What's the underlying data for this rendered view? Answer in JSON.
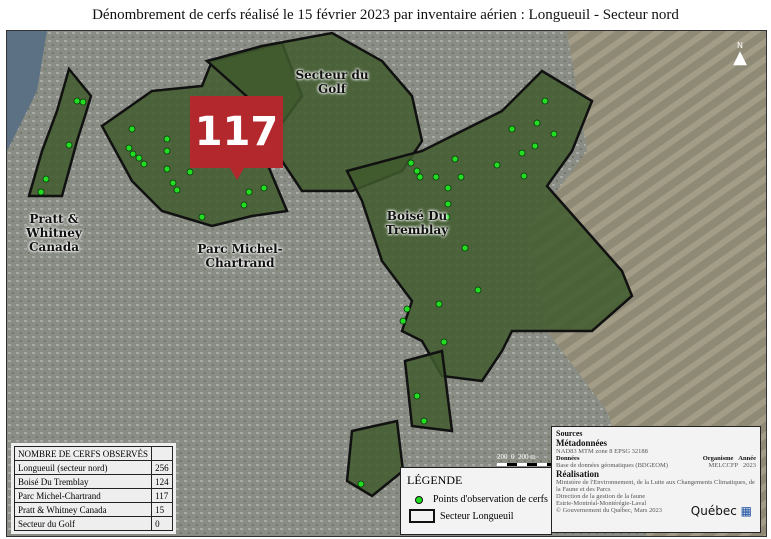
{
  "title": "Dénombrement de cerfs réalisé le 15 février 2023 par inventaire aérien : Longueuil - Secteur nord",
  "callout": "117",
  "map_labels": {
    "golf": "Secteur du Golf",
    "pratt": "Pratt & Whitney Canada",
    "parc": "Parc Michel-Chartrand",
    "boise": "Boisé Du Tremblay"
  },
  "north": "N",
  "scale": {
    "left": "200",
    "mid": "0",
    "right": "200 m"
  },
  "table": {
    "header": "NOMBRE DE CERFS OBSERVÉS",
    "rows": [
      {
        "name": "Longueuil (secteur nord)",
        "count": "256"
      },
      {
        "name": "Boisé Du Tremblay",
        "count": "124"
      },
      {
        "name": "Parc Michel-Chartrand",
        "count": "117"
      },
      {
        "name": "Pratt & Whitney Canada",
        "count": "15"
      },
      {
        "name": "Secteur du Golf",
        "count": "0"
      }
    ]
  },
  "legend": {
    "title": "LÉGENDE",
    "points": "Points d'observation de cerfs",
    "sector": "Secteur Longueuil"
  },
  "sources": {
    "heading": "Sources",
    "meta_h": "Métadonnées",
    "meta": "NAD83 MTM zone 8 EPSG 32188",
    "data_h": "Données",
    "org_h": "Organisme",
    "year_h": "Année",
    "data": "Base de données géomatiques (BDGEOM)",
    "org": "MELCCFP",
    "year": "2023",
    "real_h": "Réalisation",
    "real1": "Ministère de l'Environnement, de la Lutte aux Changements Climatiques, de la Faune et des Parcs",
    "real2": "Direction de la gestion de la faune",
    "real3": "Estrie-Montréal-Montérégie-Laval",
    "real4": "© Gouvernement du Québec, Mars 2023",
    "logo": "Québec"
  },
  "colors": {
    "point": "#22dd22",
    "callout": "#b3282c",
    "outline": "#111111"
  }
}
